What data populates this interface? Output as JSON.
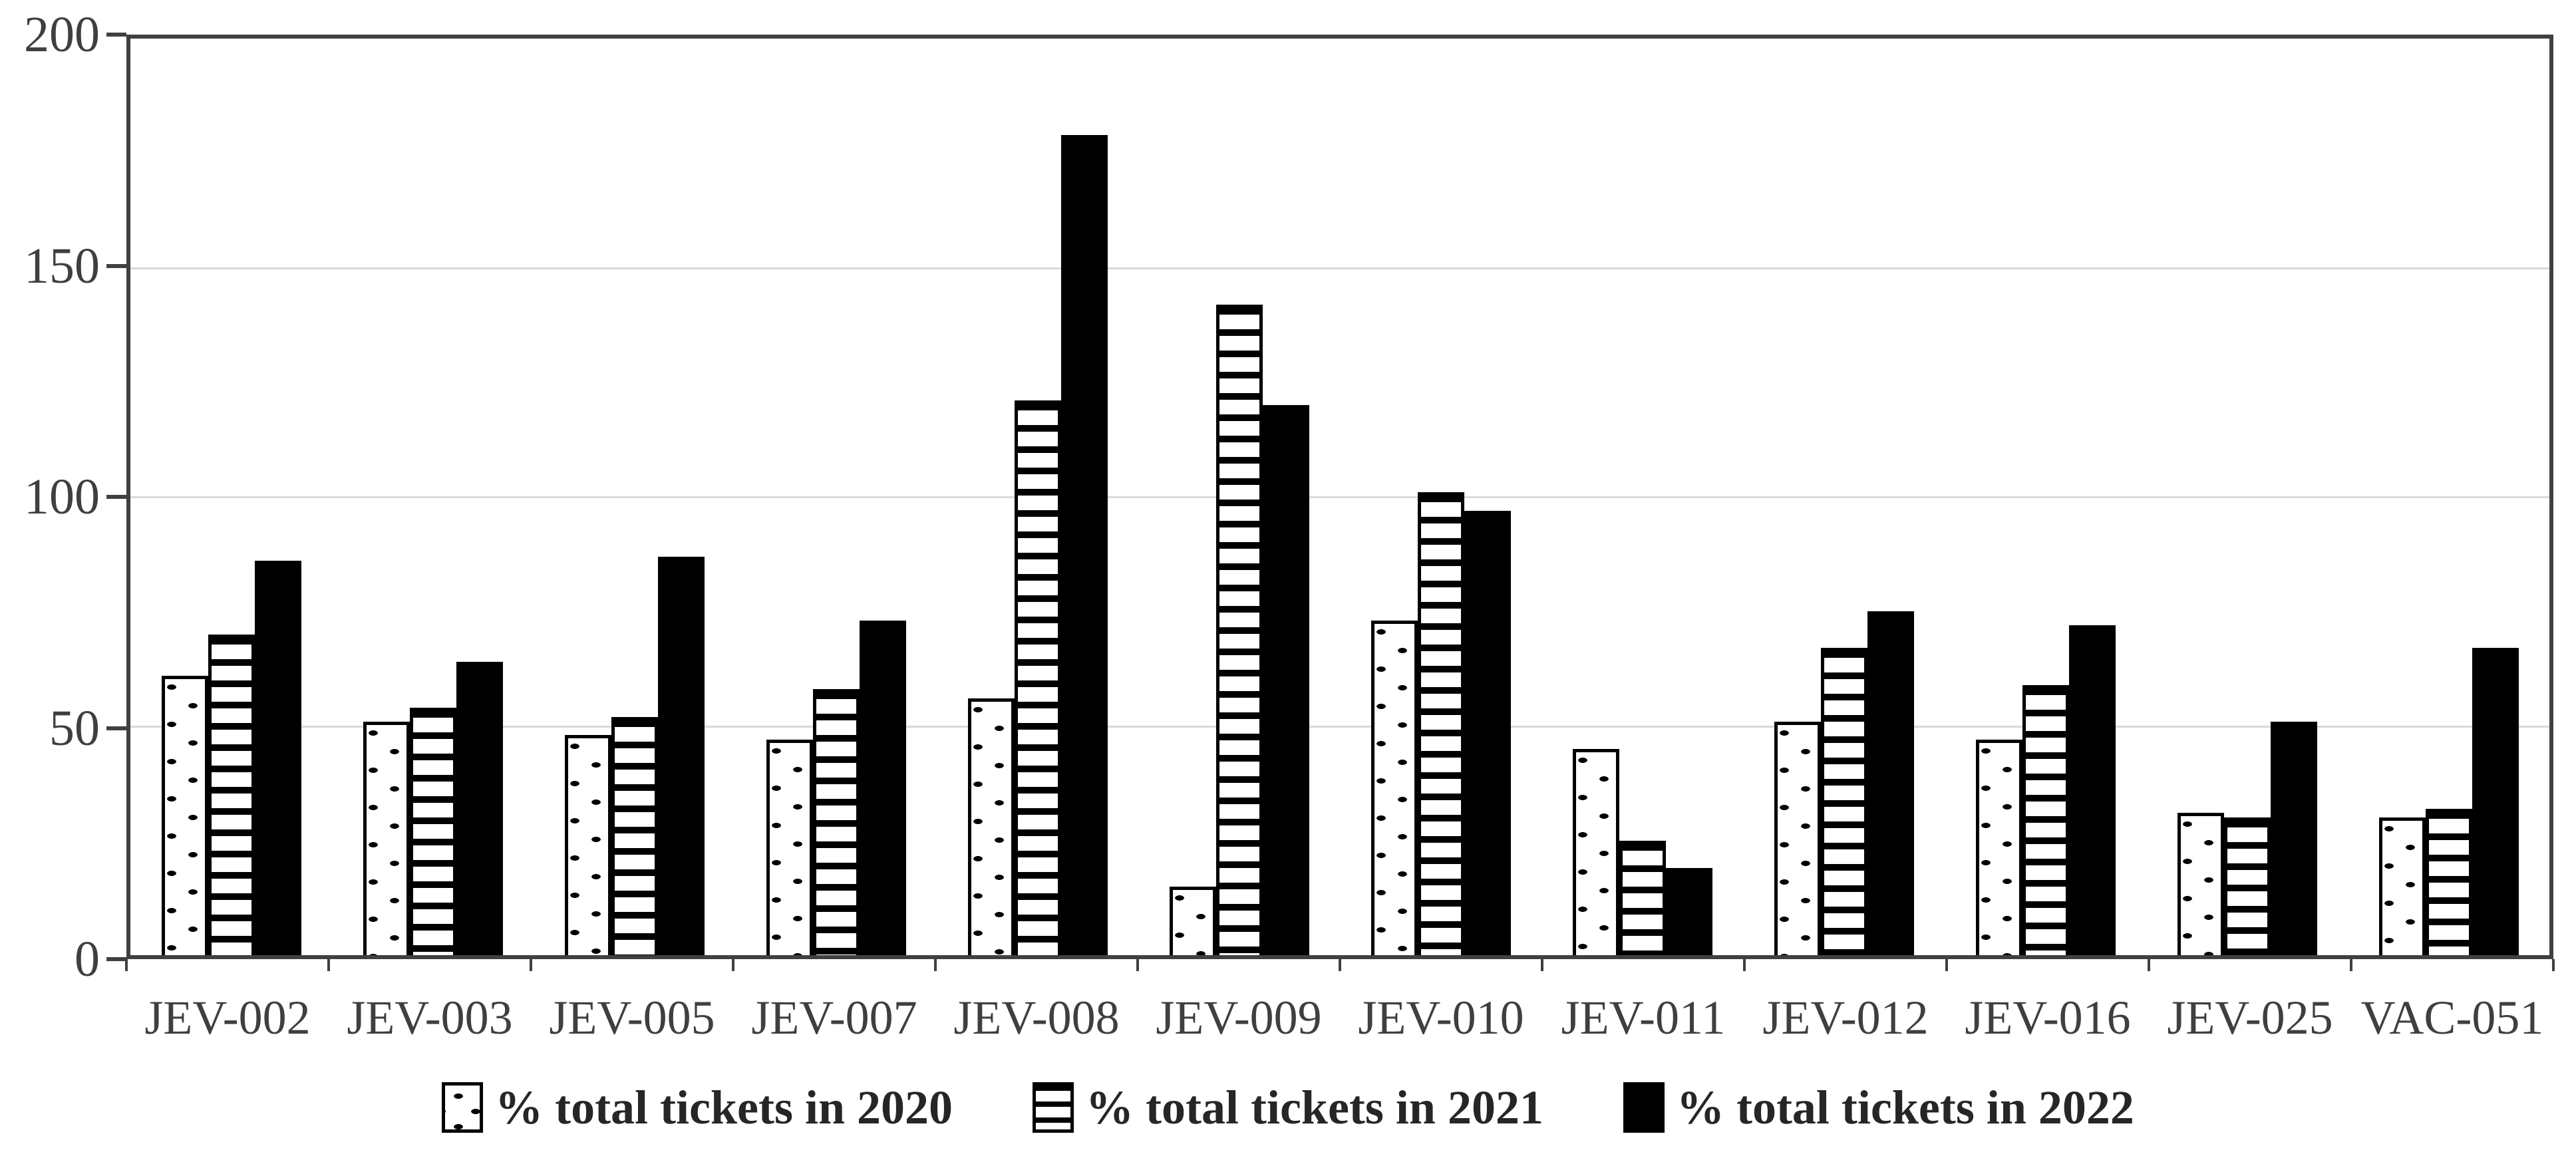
{
  "figure": {
    "background_color": "#ffffff",
    "text_color": "#3f3f3f",
    "grid_color": "#d9d9d9",
    "axis_color": "#404040",
    "bar_fill_color": "#000000"
  },
  "chart_data": {
    "type": "bar",
    "title": "",
    "xlabel": "",
    "ylabel": "",
    "categories": [
      "JEV-002",
      "JEV-003",
      "JEV-005",
      "JEV-007",
      "JEV-008",
      "JEV-009",
      "JEV-010",
      "JEV-011",
      "JEV-012",
      "JEV-016",
      "JEV-025",
      "VAC-051"
    ],
    "series": [
      {
        "name": "% total tickets in 2020",
        "pattern": "dots",
        "values": [
          61,
          51,
          48,
          47,
          56,
          15,
          73,
          45,
          51,
          47,
          31,
          30
        ]
      },
      {
        "name": "% total tickets in 2021",
        "pattern": "hlines",
        "values": [
          70,
          54,
          52,
          58,
          121,
          142,
          101,
          25,
          67,
          59,
          30,
          32
        ]
      },
      {
        "name": "% total tickets in 2022",
        "pattern": "solid",
        "values": [
          86,
          64,
          87,
          73,
          179,
          120,
          97,
          19,
          75,
          72,
          51,
          67
        ]
      }
    ],
    "ylim": [
      0,
      200
    ],
    "yticks": [
      0,
      50,
      100,
      150,
      200
    ],
    "grid": true,
    "legend_position": "bottom"
  }
}
